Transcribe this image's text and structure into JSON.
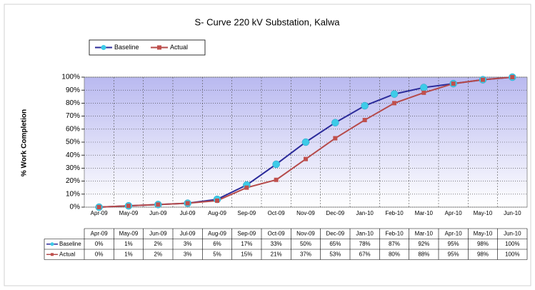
{
  "chart_data": {
    "type": "line",
    "title": "S- Curve 220 kV Substation, Kalwa",
    "y_label": "% Work Completion",
    "categories": [
      "Apr-09",
      "May-09",
      "Jun-09",
      "Jul-09",
      "Aug-09",
      "Sep-09",
      "Oct-09",
      "Nov-09",
      "Dec-09",
      "Jan-10",
      "Feb-10",
      "Mar-10",
      "Apr-10",
      "May-10",
      "Jun-10"
    ],
    "series": [
      {
        "name": "Baseline",
        "color": "#2b2b9a",
        "marker_color": "#3ccbe8",
        "values": [
          0,
          1,
          2,
          3,
          6,
          17,
          33,
          50,
          65,
          78,
          87,
          92,
          95,
          98,
          100
        ],
        "value_labels": [
          "0%",
          "1%",
          "2%",
          "3%",
          "6%",
          "17%",
          "33%",
          "50%",
          "65%",
          "78%",
          "87%",
          "92%",
          "95%",
          "98%",
          "100%"
        ]
      },
      {
        "name": "Actual",
        "color": "#b54a4a",
        "marker_color": "#c0504d",
        "values": [
          0,
          1,
          2,
          3,
          5,
          15,
          21,
          37,
          53,
          67,
          80,
          88,
          95,
          98,
          100
        ],
        "value_labels": [
          "0%",
          "1%",
          "2%",
          "3%",
          "5%",
          "15%",
          "21%",
          "37%",
          "53%",
          "67%",
          "80%",
          "88%",
          "95%",
          "98%",
          "100%"
        ]
      }
    ],
    "ylim": [
      0,
      100
    ],
    "yticks": [
      {
        "value": 0,
        "label": "0%"
      },
      {
        "value": 10,
        "label": "10%"
      },
      {
        "value": 20,
        "label": "20%"
      },
      {
        "value": 30,
        "label": "30%"
      },
      {
        "value": 40,
        "label": "40%"
      },
      {
        "value": 50,
        "label": "50%"
      },
      {
        "value": 60,
        "label": "60%"
      },
      {
        "value": 70,
        "label": "70%"
      },
      {
        "value": 80,
        "label": "80%"
      },
      {
        "value": 90,
        "label": "90%"
      },
      {
        "value": 100,
        "label": "100%"
      }
    ],
    "grid": true,
    "legend": "top-left",
    "data_table": true
  }
}
